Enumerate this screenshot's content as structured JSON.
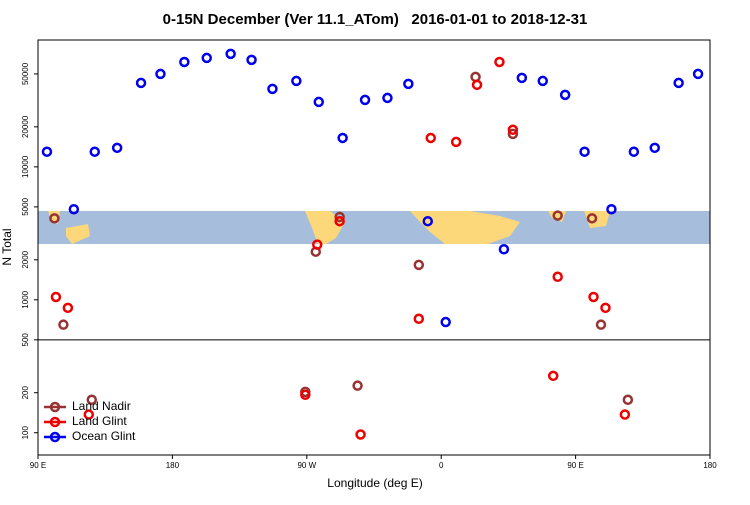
{
  "chart_data": {
    "type": "scatter",
    "title": "0-15N December (Ver 11.1_ATom)   2016-01-01 to 2018-12-31",
    "x_label": "Longitude (deg E)",
    "y_label": "N Total",
    "log_y": true,
    "xlim": [
      90,
      540
    ],
    "ylim": [
      68,
      90000
    ],
    "xticks": [
      {
        "value": 90,
        "label": "90 E"
      },
      180,
      {
        "value": 270,
        "label": "90 W"
      },
      {
        "value": 360,
        "label": "0"
      },
      {
        "value": 450,
        "label": "90 E"
      },
      {
        "value": 540,
        "label": "180"
      }
    ],
    "yticks": [
      100,
      200,
      500,
      1000,
      2000,
      5000,
      10000,
      20000,
      50000
    ],
    "hline": 500,
    "legend": "bottom-left",
    "series": [
      {
        "name": "Land Nadir",
        "color": "#993333",
        "x": [
          101,
          107,
          126,
          269,
          276,
          292,
          304,
          345,
          383,
          408,
          438,
          461,
          467,
          485
        ],
        "values": [
          4100,
          650,
          177,
          203,
          2300,
          4200,
          226,
          1830,
          47500,
          17700,
          4300,
          4100,
          650,
          177
        ]
      },
      {
        "name": "Land Glint",
        "color": "#ee0000",
        "x": [
          102,
          110,
          124,
          269,
          277,
          292,
          306,
          345,
          353,
          370,
          384,
          399,
          408,
          435,
          438,
          462,
          470,
          483
        ],
        "values": [
          1050,
          870,
          137,
          193,
          2600,
          3900,
          97,
          720,
          16500,
          15400,
          41400,
          61500,
          19000,
          268,
          1490,
          1050,
          870,
          137
        ]
      },
      {
        "name": "Ocean Glint",
        "color": "#0000ee",
        "x": [
          96,
          114,
          128,
          143,
          159,
          172,
          188,
          203,
          219,
          233,
          247,
          263,
          278,
          294,
          309,
          324,
          338,
          351,
          363,
          402,
          414,
          428,
          443,
          456,
          474,
          489,
          503,
          519,
          532
        ],
        "values": [
          13000,
          4800,
          13000,
          13900,
          42800,
          50000,
          61500,
          66000,
          70800,
          63800,
          38600,
          44300,
          30800,
          16500,
          31900,
          33000,
          42100,
          3900,
          680,
          2400,
          46700,
          44300,
          34800,
          13000,
          4800,
          13000,
          13900,
          42800,
          50000
        ]
      }
    ]
  }
}
